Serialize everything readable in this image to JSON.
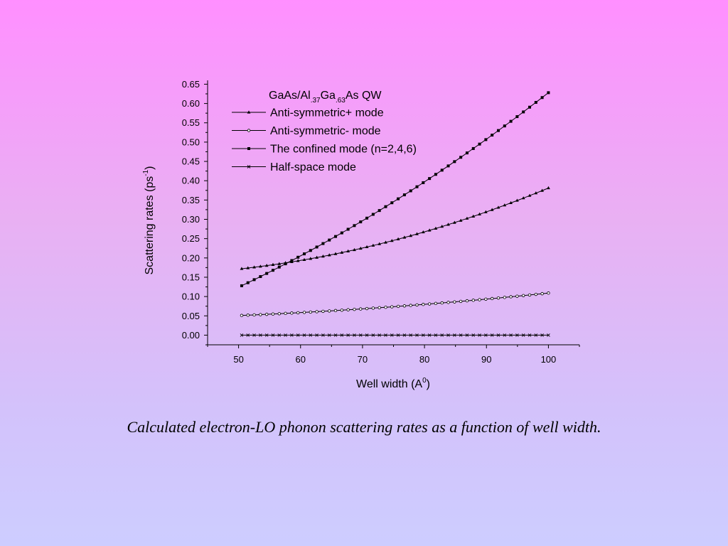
{
  "chart_data": {
    "type": "line",
    "title": {
      "base": "GaAs/Al",
      "sub1": ".37",
      "mid": "Ga",
      "sub2": ".63",
      "end": "As QW"
    },
    "xlabel": {
      "base": "Well width (A",
      "sup": "0",
      "end": ")"
    },
    "ylabel": {
      "base": "Scattering rates (ps",
      "sup": "-1",
      "end": ")"
    },
    "xlim": [
      45,
      105
    ],
    "ylim": [
      -0.025,
      0.66
    ],
    "x_ticks": [
      50,
      60,
      70,
      80,
      90,
      100
    ],
    "x_tick_labels": [
      "50",
      "60",
      "70",
      "80",
      "90",
      "100"
    ],
    "y_ticks": [
      0,
      0.05,
      0.1,
      0.15,
      0.2,
      0.25,
      0.3,
      0.35,
      0.4,
      0.45,
      0.5,
      0.55,
      0.6,
      0.65
    ],
    "y_tick_labels": [
      "0.00",
      "0.05",
      "0.10",
      "0.15",
      "0.20",
      "0.25",
      "0.30",
      "0.35",
      "0.40",
      "0.45",
      "0.50",
      "0.55",
      "0.60",
      "0.65"
    ],
    "legend_position": "top-left",
    "x_range": [
      50.5,
      100
    ],
    "n_points": 50,
    "series": [
      {
        "name": "Anti-symmetric+ mode",
        "marker": "triangle",
        "y_start": 0.172,
        "y_end": 0.381,
        "curve": -0.03
      },
      {
        "name": "Anti-symmetric- mode",
        "marker": "circle",
        "y_start": 0.051,
        "y_end": 0.109,
        "curve": -0.006
      },
      {
        "name": "The confined mode (n=2,4,6)",
        "marker": "square",
        "y_start": 0.128,
        "y_end": 0.628,
        "curve": -0.03
      },
      {
        "name": "Half-space mode",
        "marker": "x",
        "y_start": 0.0,
        "y_end": 0.0,
        "curve": 0
      }
    ],
    "colors": {
      "line": "#000000"
    }
  },
  "caption": "Calculated electron-LO phonon scattering rates as a function of well width."
}
